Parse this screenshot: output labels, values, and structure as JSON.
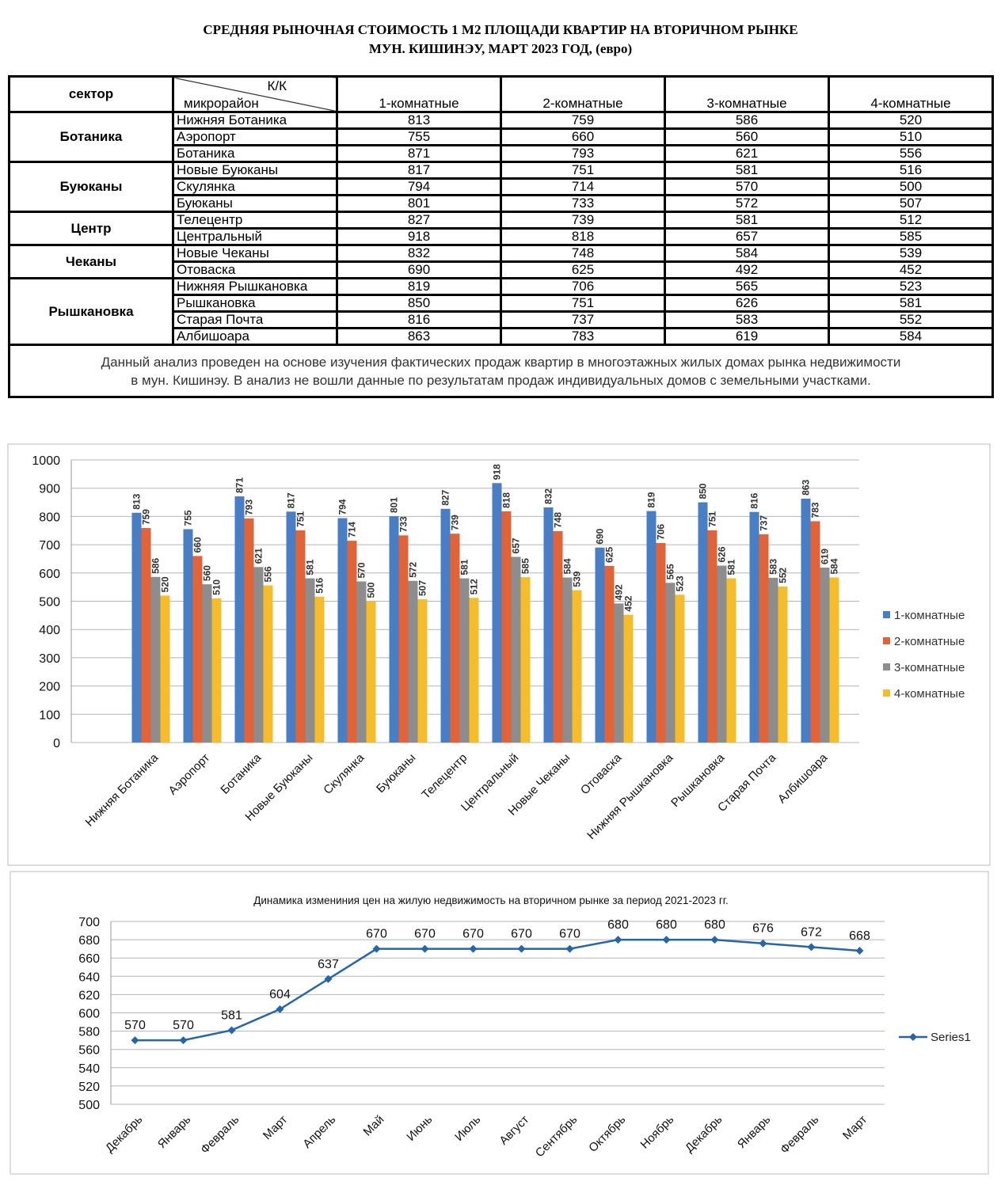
{
  "header": {
    "title_line1": "СРЕДНЯЯ  РЫНОЧНАЯ  СТОИМОСТЬ  1 М2  ПЛОЩАДИ  КВАРТИР НА ВТОРИЧНОМ РЫНКЕ",
    "title_line2": "МУН.  КИШИНЭУ, МАРТ 2023 ГОД, (евро)"
  },
  "table": {
    "corner": {
      "sector": "сектор",
      "top": "К/К",
      "bottom": "микрорайон"
    },
    "columns": [
      "1-комнатные",
      "2-комнатные",
      "3-комнатные",
      "4-комнатные"
    ],
    "groups": [
      {
        "sector": "Ботаника",
        "rows": [
          [
            "Нижняя Ботаника",
            813,
            759,
            586,
            520
          ],
          [
            "Аэропорт",
            755,
            660,
            560,
            510
          ],
          [
            "Ботаника",
            871,
            793,
            621,
            556
          ]
        ]
      },
      {
        "sector": "Буюканы",
        "rows": [
          [
            "Новые Буюканы",
            817,
            751,
            581,
            516
          ],
          [
            "Скулянка",
            794,
            714,
            570,
            500
          ],
          [
            "Буюканы",
            801,
            733,
            572,
            507
          ]
        ]
      },
      {
        "sector": "Центр",
        "rows": [
          [
            "Телецентр",
            827,
            739,
            581,
            512
          ],
          [
            "Центральный",
            918,
            818,
            657,
            585
          ]
        ]
      },
      {
        "sector": "Чеканы",
        "rows": [
          [
            "Новые Чеканы",
            832,
            748,
            584,
            539
          ],
          [
            "Отоваска",
            690,
            625,
            492,
            452
          ]
        ]
      },
      {
        "sector": "Рышкановка",
        "rows": [
          [
            "Нижняя Рышкановка",
            819,
            706,
            565,
            523
          ],
          [
            "Рышкановка",
            850,
            751,
            626,
            581
          ],
          [
            "Старая Почта",
            816,
            737,
            583,
            552
          ],
          [
            "Албишоара",
            863,
            783,
            619,
            584
          ]
        ]
      }
    ],
    "note": [
      "Данный анализ проведен на основе изучения фактических продаж квартир в многоэтажных жилых домах рынка недвижимости",
      "в мун. Кишинэу. В анализ не вошли данные по результатам  продаж индивидуальных домов с земельными участками."
    ]
  },
  "chart_data": [
    {
      "type": "bar",
      "categories": [
        "Нижняя Ботаника",
        "Аэропорт",
        "Ботаника",
        "Новые Буюканы",
        "Скулянка",
        "Буюканы",
        "Телецентр",
        "Центральный",
        "Новые Чеканы",
        "Отоваска",
        "Нижняя Рышкановка",
        "Рышкановка",
        "Старая Почта",
        "Албишоара"
      ],
      "series": [
        {
          "name": "1-комнатные",
          "color": "#4a7ec4",
          "values": [
            813,
            755,
            871,
            817,
            794,
            801,
            827,
            918,
            832,
            690,
            819,
            850,
            816,
            863
          ]
        },
        {
          "name": "2-комнатные",
          "color": "#e0633a",
          "values": [
            759,
            660,
            793,
            751,
            714,
            733,
            739,
            818,
            748,
            625,
            706,
            751,
            737,
            783
          ]
        },
        {
          "name": "3-комнатные",
          "color": "#8d8d8d",
          "values": [
            586,
            560,
            621,
            581,
            570,
            572,
            581,
            657,
            584,
            492,
            565,
            626,
            583,
            619
          ]
        },
        {
          "name": "4-комнатные",
          "color": "#f5bd2c",
          "values": [
            520,
            510,
            556,
            516,
            500,
            507,
            512,
            585,
            539,
            452,
            523,
            581,
            552,
            584
          ]
        }
      ],
      "ylim": [
        0,
        1000
      ],
      "yticks": [
        0,
        100,
        200,
        300,
        400,
        500,
        600,
        700,
        800,
        900,
        1000
      ],
      "grid": true,
      "legend": "right"
    },
    {
      "type": "line",
      "title": "Динамика измениния цен на жилую недвижимость на вторичном рынке за период 2021-2023 гг.",
      "categories": [
        "Декабрь",
        "Январь",
        "Февраль",
        "Март",
        "Апрель",
        "Май",
        "Июнь",
        "Июль",
        "Август",
        "Сентябрь",
        "Октябрь",
        "Ноябрь",
        "Декабрь",
        "Январь",
        "Февраль",
        "Март"
      ],
      "series": [
        {
          "name": "Series1",
          "color": "#2566ab",
          "values": [
            570,
            570,
            581,
            604,
            637,
            670,
            670,
            670,
            670,
            670,
            680,
            680,
            680,
            676,
            672,
            668
          ]
        }
      ],
      "ylim": [
        500,
        700
      ],
      "yticks": [
        500,
        520,
        540,
        560,
        580,
        600,
        620,
        640,
        660,
        680,
        700
      ],
      "grid": true,
      "legend": "right"
    }
  ]
}
